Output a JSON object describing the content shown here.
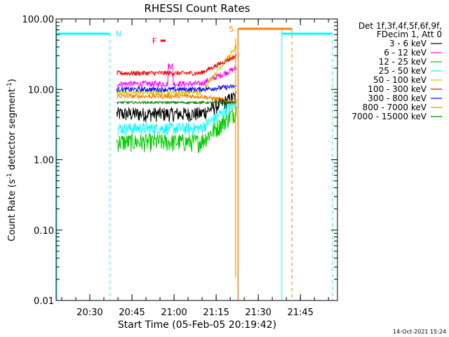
{
  "chart_data": {
    "type": "line",
    "title": "RHESSI Count Rates",
    "xlabel": "Start Time (05-Feb-05 20:19:42)",
    "ylabel_main": "Count Rate (s",
    "ylabel_sup1": "-1",
    "ylabel_mid": " detector segment",
    "ylabel_sup2": "-1",
    "ylabel_end": ")",
    "y_scale": "log",
    "ylim": [
      0.01,
      100
    ],
    "xlim_minutes": [
      20.3,
      21.97
    ],
    "x_ticks": [
      {
        "t": 20.5,
        "label": "20:30"
      },
      {
        "t": 20.75,
        "label": "20:45"
      },
      {
        "t": 21.0,
        "label": "21:00"
      },
      {
        "t": 21.25,
        "label": "21:15"
      },
      {
        "t": 21.5,
        "label": "21:30"
      },
      {
        "t": 21.75,
        "label": "21:45"
      }
    ],
    "y_ticks": [
      {
        "v": 0.01,
        "label": "0.01"
      },
      {
        "v": 0.1,
        "label": "0.10"
      },
      {
        "v": 1,
        "label": "1.00"
      },
      {
        "v": 10,
        "label": "10.00"
      },
      {
        "v": 100,
        "label": "100.00"
      }
    ],
    "legend_header": [
      "Det 1f,3f,4f,5f,6f,9f,",
      "FDecim 1, Att 0"
    ],
    "legend_position": "right",
    "series": [
      {
        "name": "3 - 6 keV",
        "color": "#000000",
        "base": 4.5,
        "noise": 0.12,
        "end": 8
      },
      {
        "name": "6 - 12 keV",
        "color": "#ff00ff",
        "base": 12,
        "noise": 0.05,
        "end": 20
      },
      {
        "name": "12 - 25 keV",
        "color": "#00cc00",
        "base": 1.8,
        "noise": 0.15,
        "end": 5
      },
      {
        "name": "25 - 50 keV",
        "color": "#00ffff",
        "base": 2.8,
        "noise": 0.1,
        "end": 6.5
      },
      {
        "name": "50 - 100 keV",
        "color": "#cccc00",
        "base": 9,
        "noise": 0.04,
        "end": 40
      },
      {
        "name": "100 - 300 keV",
        "color": "#ff0000",
        "base": 17,
        "noise": 0.04,
        "end": 30
      },
      {
        "name": "300 - 800 keV",
        "color": "#0000ff",
        "base": 10,
        "noise": 0.04,
        "end": 11
      },
      {
        "name": "800 - 7000 keV",
        "color": "#ff8000",
        "base": 8,
        "noise": 0.04,
        "end": 6.5
      },
      {
        "name": "7000 - 15000 keV",
        "color": "#008000",
        "base": 6.5,
        "noise": 0.02,
        "end": 6.5
      }
    ],
    "data_range_minutes": [
      20.66,
      21.37
    ],
    "annotations": {
      "night_label": "N",
      "flare_label": "F",
      "saa_label": "S",
      "night_color": "#00ffff",
      "flare_color": "#ff0000",
      "saa_color": "#ff8000"
    },
    "timestamp": "14-Oct-2021 15:24"
  }
}
